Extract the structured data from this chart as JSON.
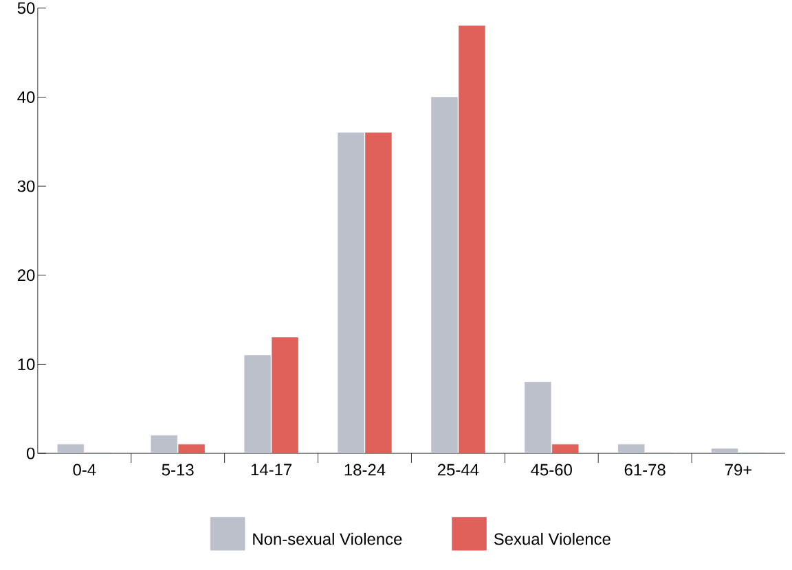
{
  "chart_data": {
    "type": "bar",
    "categories": [
      "0-4",
      "5-13",
      "14-17",
      "18-24",
      "25-44",
      "45-60",
      "61-78",
      "79+"
    ],
    "series": [
      {
        "name": "Non-sexual Violence",
        "color": "#bcc0cb",
        "values": [
          1,
          2,
          11,
          36,
          40,
          8,
          1,
          0.5
        ]
      },
      {
        "name": "Sexual Violence",
        "color": "#e0605a",
        "values": [
          0,
          1,
          13,
          36,
          48,
          1,
          0,
          0
        ]
      }
    ],
    "ylim": [
      0,
      50
    ],
    "yticks": [
      0,
      10,
      20,
      30,
      40,
      50
    ],
    "legend": "bottom"
  }
}
